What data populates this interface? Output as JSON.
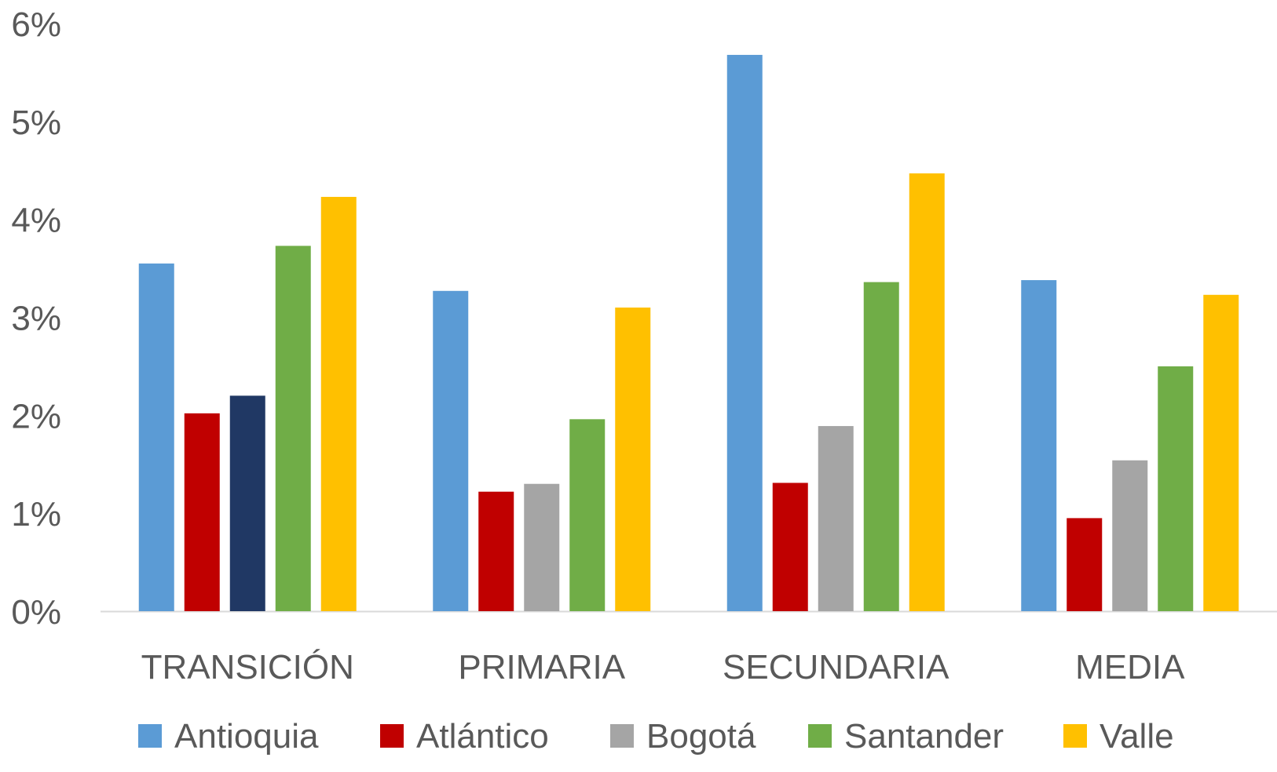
{
  "chart_data": {
    "type": "bar",
    "title": "",
    "xlabel": "",
    "ylabel": "",
    "ylim": [
      0,
      6
    ],
    "yticks": [
      0,
      1,
      2,
      3,
      4,
      5,
      6
    ],
    "ytick_labels": [
      "0%",
      "1%",
      "2%",
      "3%",
      "4%",
      "5%",
      "6%"
    ],
    "grid": false,
    "legend_position": "bottom",
    "categories": [
      "TRANSICIÓN",
      "PRIMARIA",
      "SECUNDARIA",
      "MEDIA"
    ],
    "series": [
      {
        "name": "Antioquia",
        "color": "#5B9BD5",
        "values": [
          3.55,
          3.27,
          5.68,
          3.38
        ]
      },
      {
        "name": "Atlántico",
        "color": "#C00000",
        "values": [
          2.02,
          1.22,
          1.31,
          0.95
        ]
      },
      {
        "name": "Bogotá",
        "color": "#A5A5A5",
        "values": [
          2.2,
          1.3,
          1.89,
          1.54
        ]
      },
      {
        "name": "Santander",
        "color": "#70AD47",
        "values": [
          3.73,
          1.96,
          3.36,
          2.5
        ]
      },
      {
        "name": "Valle",
        "color": "#FFC000",
        "values": [
          4.23,
          3.1,
          4.47,
          3.23
        ]
      }
    ],
    "point_colors": [
      {
        "series": 2,
        "index": 0,
        "color": "#203864"
      }
    ]
  }
}
